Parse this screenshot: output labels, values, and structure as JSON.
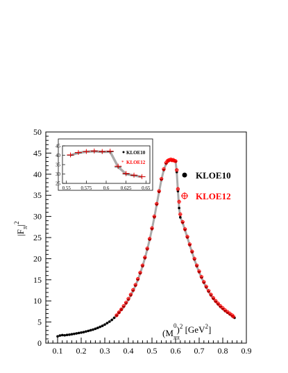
{
  "chart_data": {
    "type": "scatter",
    "xlabel_base": "(M",
    "xlabel_sub": "ππ",
    "xlabel_sup": "0",
    "xlabel_tail": ")",
    "xlabel_exp": "2",
    "xlabel_unit": " [GeV",
    "xlabel_unit_exp": "2",
    "xlabel_unit_end": "]",
    "ylabel_base": "|F",
    "ylabel_sub": "π",
    "ylabel_tail": "|",
    "ylabel_exp": "2",
    "xlim": [
      0.05,
      0.9
    ],
    "ylim": [
      0,
      50
    ],
    "x_ticks": [
      "0.1",
      "0.2",
      "0.3",
      "0.4",
      "0.5",
      "0.6",
      "0.7",
      "0.8",
      "0.9"
    ],
    "y_ticks": [
      "0",
      "5",
      "10",
      "15",
      "20",
      "25",
      "30",
      "35",
      "40",
      "45",
      "50"
    ],
    "legend": [
      {
        "label": "KLOE10",
        "color": "#000000",
        "marker": "circle"
      },
      {
        "label": "KLOE12",
        "color": "#ff0000",
        "marker": "open-cross"
      }
    ],
    "series": [
      {
        "name": "KLOE10",
        "color": "#000000",
        "points": [
          [
            0.1,
            1.6
          ],
          [
            0.11,
            1.8
          ],
          [
            0.12,
            1.9
          ],
          [
            0.13,
            1.85
          ],
          [
            0.14,
            1.95
          ],
          [
            0.15,
            2.0
          ],
          [
            0.16,
            2.1
          ],
          [
            0.17,
            2.2
          ],
          [
            0.18,
            2.3
          ],
          [
            0.19,
            2.4
          ],
          [
            0.2,
            2.5
          ],
          [
            0.21,
            2.6
          ],
          [
            0.22,
            2.75
          ],
          [
            0.23,
            2.9
          ],
          [
            0.24,
            3.05
          ],
          [
            0.25,
            3.2
          ],
          [
            0.26,
            3.4
          ],
          [
            0.27,
            3.6
          ],
          [
            0.28,
            3.85
          ],
          [
            0.29,
            4.1
          ],
          [
            0.3,
            4.4
          ],
          [
            0.31,
            4.75
          ],
          [
            0.32,
            5.1
          ],
          [
            0.33,
            5.5
          ],
          [
            0.34,
            6.0
          ],
          [
            0.35,
            6.5
          ],
          [
            0.36,
            7.2
          ],
          [
            0.37,
            7.9
          ],
          [
            0.38,
            8.6
          ],
          [
            0.39,
            9.4
          ],
          [
            0.4,
            10.3
          ],
          [
            0.41,
            11.3
          ],
          [
            0.42,
            12.4
          ],
          [
            0.43,
            13.6
          ],
          [
            0.44,
            15.0
          ],
          [
            0.45,
            16.5
          ],
          [
            0.46,
            18.2
          ],
          [
            0.47,
            20.1
          ],
          [
            0.48,
            22.2
          ],
          [
            0.49,
            24.5
          ],
          [
            0.5,
            27.0
          ],
          [
            0.51,
            29.8
          ],
          [
            0.52,
            32.8
          ],
          [
            0.53,
            35.8
          ],
          [
            0.54,
            38.7
          ],
          [
            0.55,
            41.0
          ],
          [
            0.56,
            42.5
          ],
          [
            0.57,
            43.1
          ],
          [
            0.58,
            43.3
          ],
          [
            0.59,
            43.2
          ],
          [
            0.6,
            43.0
          ],
          [
            0.605,
            40.5
          ],
          [
            0.61,
            36.0
          ],
          [
            0.615,
            32.0
          ],
          [
            0.62,
            29.8
          ],
          [
            0.63,
            28.5
          ],
          [
            0.64,
            26.8
          ],
          [
            0.65,
            25.0
          ],
          [
            0.66,
            23.2
          ],
          [
            0.67,
            21.5
          ],
          [
            0.68,
            19.8
          ],
          [
            0.69,
            18.2
          ],
          [
            0.7,
            16.8
          ],
          [
            0.71,
            15.5
          ],
          [
            0.72,
            14.3
          ],
          [
            0.73,
            13.2
          ],
          [
            0.74,
            12.2
          ],
          [
            0.75,
            11.3
          ],
          [
            0.76,
            10.5
          ],
          [
            0.77,
            9.8
          ],
          [
            0.78,
            9.2
          ],
          [
            0.79,
            8.6
          ],
          [
            0.8,
            8.1
          ],
          [
            0.81,
            7.6
          ],
          [
            0.82,
            7.2
          ],
          [
            0.83,
            6.8
          ],
          [
            0.84,
            6.4
          ],
          [
            0.85,
            6.0
          ]
        ]
      },
      {
        "name": "KLOE12",
        "color": "#ff0000",
        "points": [
          [
            0.35,
            6.6
          ],
          [
            0.36,
            7.3
          ],
          [
            0.37,
            8.0
          ],
          [
            0.38,
            8.8
          ],
          [
            0.39,
            9.6
          ],
          [
            0.4,
            10.5
          ],
          [
            0.41,
            11.5
          ],
          [
            0.42,
            12.6
          ],
          [
            0.43,
            13.8
          ],
          [
            0.44,
            15.2
          ],
          [
            0.45,
            16.7
          ],
          [
            0.46,
            18.4
          ],
          [
            0.47,
            20.3
          ],
          [
            0.48,
            22.4
          ],
          [
            0.49,
            24.7
          ],
          [
            0.5,
            27.2
          ],
          [
            0.51,
            30.0
          ],
          [
            0.52,
            33.0
          ],
          [
            0.53,
            36.0
          ],
          [
            0.54,
            38.9
          ],
          [
            0.55,
            41.2
          ],
          [
            0.56,
            42.7
          ],
          [
            0.565,
            43.1
          ],
          [
            0.57,
            43.3
          ],
          [
            0.575,
            43.4
          ],
          [
            0.58,
            43.5
          ],
          [
            0.585,
            43.3
          ],
          [
            0.59,
            43.4
          ],
          [
            0.595,
            43.2
          ],
          [
            0.6,
            43.1
          ],
          [
            0.605,
            41.0
          ],
          [
            0.61,
            36.5
          ],
          [
            0.615,
            33.5
          ],
          [
            0.62,
            30.5
          ],
          [
            0.63,
            28.7
          ],
          [
            0.64,
            27.0
          ],
          [
            0.65,
            25.2
          ],
          [
            0.66,
            23.4
          ],
          [
            0.67,
            21.7
          ],
          [
            0.68,
            20.0
          ],
          [
            0.69,
            18.4
          ],
          [
            0.7,
            17.0
          ],
          [
            0.71,
            15.7
          ],
          [
            0.72,
            14.5
          ],
          [
            0.73,
            13.4
          ],
          [
            0.74,
            12.4
          ],
          [
            0.75,
            11.5
          ],
          [
            0.76,
            10.7
          ],
          [
            0.77,
            10.0
          ],
          [
            0.78,
            9.4
          ],
          [
            0.79,
            8.8
          ],
          [
            0.8,
            8.3
          ],
          [
            0.81,
            7.8
          ],
          [
            0.82,
            7.4
          ],
          [
            0.83,
            7.0
          ],
          [
            0.84,
            6.6
          ],
          [
            0.845,
            6.3
          ]
        ]
      }
    ],
    "inset": {
      "xlim": [
        0.545,
        0.655
      ],
      "ylim": [
        25,
        45
      ],
      "x_ticks": [
        "0.55",
        "0.575",
        "0.6",
        "0.625",
        "0.65"
      ],
      "y_ticks": [
        "25",
        "30",
        "35",
        "40",
        "45"
      ],
      "legend": [
        {
          "label": "KLOE10",
          "color": "#000000"
        },
        {
          "label": "KLOE12",
          "color": "#ff0000"
        }
      ],
      "series": [
        {
          "name": "KLOE10",
          "color": "#000000",
          "points": [
            [
              0.555,
              40.0
            ],
            [
              0.565,
              41.3
            ],
            [
              0.575,
              41.9
            ],
            [
              0.585,
              42.1
            ],
            [
              0.595,
              41.8
            ],
            [
              0.605,
              41.9
            ],
            [
              0.615,
              33.8
            ],
            [
              0.625,
              30.0
            ],
            [
              0.635,
              29.2
            ],
            [
              0.645,
              28.5
            ]
          ]
        },
        {
          "name": "KLOE12",
          "color": "#ff0000",
          "points": [
            [
              0.555,
              40.2
            ],
            [
              0.565,
              41.5
            ],
            [
              0.575,
              42.0
            ],
            [
              0.585,
              42.3
            ],
            [
              0.595,
              42.0
            ],
            [
              0.605,
              42.2
            ],
            [
              0.615,
              34.2
            ],
            [
              0.625,
              30.3
            ],
            [
              0.635,
              29.4
            ],
            [
              0.645,
              28.6
            ]
          ]
        }
      ]
    }
  }
}
